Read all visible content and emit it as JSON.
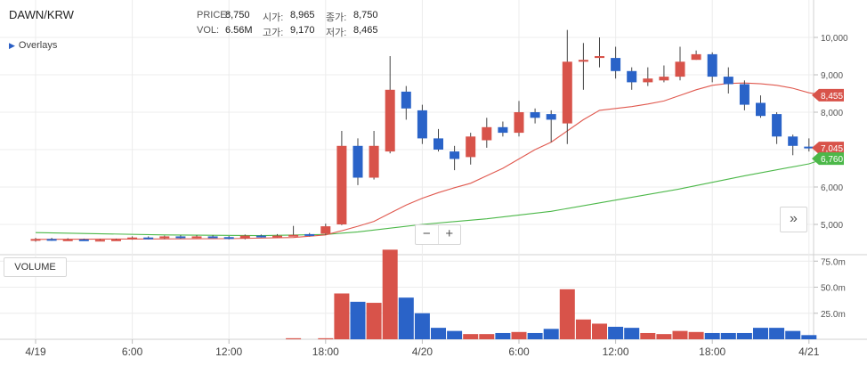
{
  "header": {
    "pair": "DAWN/KRW",
    "price_label": "PRICE:",
    "price": "8,750",
    "vol_label": "VOL:",
    "vol": "6.56M",
    "open_label": "시가:",
    "open": "8,965",
    "high_label": "고가:",
    "high": "9,170",
    "close_label": "종가:",
    "close": "8,750",
    "low_label": "저가:",
    "low": "8,465"
  },
  "overlays_label": "Overlays",
  "volume_label": "VOLUME",
  "zoom": {
    "minus": "−",
    "plus": "+"
  },
  "forward_label": "»",
  "colors": {
    "up": "#d8534a",
    "down": "#2a63c8",
    "ma_fast": "#e0594f",
    "ma_slow": "#4cb849"
  },
  "chart_data": {
    "type": "candlestick",
    "price_axis": {
      "ticks": [
        5000,
        6000,
        7000,
        8000,
        9000,
        10000
      ],
      "tick_labels": [
        "5,000",
        "6,000",
        "7,000",
        "8,000",
        "9,000",
        "10,000"
      ]
    },
    "volume_axis": {
      "ticks": [
        25,
        50,
        75
      ],
      "tick_labels": [
        "25.0m",
        "50.0m",
        "75.0m"
      ]
    },
    "x_ticks": [
      "4/19",
      "6:00",
      "12:00",
      "18:00",
      "4/20",
      "6:00",
      "12:00",
      "18:00",
      "4/21"
    ],
    "x_tick_hours": [
      0,
      6,
      12,
      18,
      24,
      30,
      36,
      42,
      48
    ],
    "candles": [
      {
        "h": 0.0,
        "o": 4570,
        "c": 4610,
        "hi": 4640,
        "lo": 4540,
        "v": 0
      },
      {
        "h": 1.0,
        "o": 4610,
        "c": 4580,
        "hi": 4640,
        "lo": 4560,
        "v": 0
      },
      {
        "h": 2.0,
        "o": 4590,
        "c": 4600,
        "hi": 4630,
        "lo": 4570,
        "v": 0
      },
      {
        "h": 3.0,
        "o": 4600,
        "c": 4580,
        "hi": 4620,
        "lo": 4560,
        "v": 0
      },
      {
        "h": 4.0,
        "o": 4580,
        "c": 4590,
        "hi": 4610,
        "lo": 4560,
        "v": 0
      },
      {
        "h": 5.0,
        "o": 4590,
        "c": 4600,
        "hi": 4620,
        "lo": 4570,
        "v": 0
      },
      {
        "h": 6.0,
        "o": 4600,
        "c": 4650,
        "hi": 4680,
        "lo": 4590,
        "v": 0
      },
      {
        "h": 7.0,
        "o": 4650,
        "c": 4620,
        "hi": 4680,
        "lo": 4600,
        "v": 0
      },
      {
        "h": 8.0,
        "o": 4630,
        "c": 4680,
        "hi": 4700,
        "lo": 4610,
        "v": 0
      },
      {
        "h": 9.0,
        "o": 4680,
        "c": 4640,
        "hi": 4710,
        "lo": 4620,
        "v": 0
      },
      {
        "h": 10.0,
        "o": 4650,
        "c": 4680,
        "hi": 4710,
        "lo": 4630,
        "v": 0
      },
      {
        "h": 11.0,
        "o": 4680,
        "c": 4660,
        "hi": 4710,
        "lo": 4640,
        "v": 0
      },
      {
        "h": 12.0,
        "o": 4660,
        "c": 4620,
        "hi": 4690,
        "lo": 4600,
        "v": 0
      },
      {
        "h": 13.0,
        "o": 4620,
        "c": 4700,
        "hi": 4730,
        "lo": 4600,
        "v": 0
      },
      {
        "h": 14.0,
        "o": 4700,
        "c": 4670,
        "hi": 4730,
        "lo": 4650,
        "v": 0
      },
      {
        "h": 15.0,
        "o": 4670,
        "c": 4700,
        "hi": 4740,
        "lo": 4650,
        "v": 0
      },
      {
        "h": 16.0,
        "o": 4700,
        "c": 4720,
        "hi": 4960,
        "lo": 4690,
        "v": 1
      },
      {
        "h": 17.0,
        "o": 4740,
        "c": 4700,
        "hi": 4770,
        "lo": 4680,
        "v": 0
      },
      {
        "h": 18.0,
        "o": 4750,
        "c": 4950,
        "hi": 5020,
        "lo": 4720,
        "v": 1
      },
      {
        "h": 19.0,
        "o": 5000,
        "c": 7100,
        "hi": 7500,
        "lo": 4980,
        "v": 44
      },
      {
        "h": 20.0,
        "o": 7100,
        "c": 6250,
        "hi": 7300,
        "lo": 6050,
        "v": 36
      },
      {
        "h": 21.0,
        "o": 6250,
        "c": 7100,
        "hi": 7500,
        "lo": 6200,
        "v": 35
      },
      {
        "h": 22.0,
        "o": 6950,
        "c": 8600,
        "hi": 9500,
        "lo": 6900,
        "v": 86
      },
      {
        "h": 23.0,
        "o": 8550,
        "c": 8100,
        "hi": 8700,
        "lo": 7800,
        "v": 40
      },
      {
        "h": 24.0,
        "o": 8050,
        "c": 7300,
        "hi": 8200,
        "lo": 7150,
        "v": 25
      },
      {
        "h": 25.0,
        "o": 7300,
        "c": 7000,
        "hi": 7550,
        "lo": 6950,
        "v": 11
      },
      {
        "h": 26.0,
        "o": 6950,
        "c": 6750,
        "hi": 7100,
        "lo": 6450,
        "v": 8
      },
      {
        "h": 27.0,
        "o": 6800,
        "c": 7350,
        "hi": 7450,
        "lo": 6600,
        "v": 5
      },
      {
        "h": 28.0,
        "o": 7250,
        "c": 7600,
        "hi": 7850,
        "lo": 7050,
        "v": 5
      },
      {
        "h": 29.0,
        "o": 7600,
        "c": 7450,
        "hi": 7750,
        "lo": 7350,
        "v": 6
      },
      {
        "h": 30.0,
        "o": 7450,
        "c": 8000,
        "hi": 8300,
        "lo": 7350,
        "v": 7
      },
      {
        "h": 31.0,
        "o": 8000,
        "c": 7850,
        "hi": 8100,
        "lo": 7700,
        "v": 6
      },
      {
        "h": 32.0,
        "o": 7950,
        "c": 7800,
        "hi": 8050,
        "lo": 7200,
        "v": 10
      },
      {
        "h": 33.0,
        "o": 7700,
        "c": 9350,
        "hi": 10200,
        "lo": 7150,
        "v": 48
      },
      {
        "h": 34.0,
        "o": 9350,
        "c": 9400,
        "hi": 9850,
        "lo": 8600,
        "v": 19
      },
      {
        "h": 35.0,
        "o": 9450,
        "c": 9500,
        "hi": 10000,
        "lo": 9200,
        "v": 15
      },
      {
        "h": 36.0,
        "o": 9450,
        "c": 9100,
        "hi": 9750,
        "lo": 8900,
        "v": 12
      },
      {
        "h": 37.0,
        "o": 9100,
        "c": 8800,
        "hi": 9200,
        "lo": 8600,
        "v": 11
      },
      {
        "h": 38.0,
        "o": 8800,
        "c": 8900,
        "hi": 9200,
        "lo": 8700,
        "v": 6
      },
      {
        "h": 39.0,
        "o": 8850,
        "c": 8950,
        "hi": 9250,
        "lo": 8800,
        "v": 5
      },
      {
        "h": 40.0,
        "o": 8950,
        "c": 9350,
        "hi": 9750,
        "lo": 8850,
        "v": 8
      },
      {
        "h": 41.0,
        "o": 9400,
        "c": 9550,
        "hi": 9650,
        "lo": 9400,
        "v": 7
      },
      {
        "h": 42.0,
        "o": 9550,
        "c": 8950,
        "hi": 9600,
        "lo": 8800,
        "v": 6
      },
      {
        "h": 43.0,
        "o": 8950,
        "c": 8750,
        "hi": 9200,
        "lo": 8500,
        "v": 6
      },
      {
        "h": 44.0,
        "o": 8750,
        "c": 8200,
        "hi": 8850,
        "lo": 8050,
        "v": 6
      },
      {
        "h": 45.0,
        "o": 8250,
        "c": 7900,
        "hi": 8450,
        "lo": 7850,
        "v": 11
      },
      {
        "h": 46.0,
        "o": 7950,
        "c": 7350,
        "hi": 8000,
        "lo": 7150,
        "v": 11
      },
      {
        "h": 47.0,
        "o": 7350,
        "c": 7100,
        "hi": 7400,
        "lo": 6850,
        "v": 8
      },
      {
        "h": 48.0,
        "o": 7080,
        "c": 7045,
        "hi": 7300,
        "lo": 6950,
        "v": 4
      }
    ],
    "ma_fast": {
      "hours": [
        0,
        6,
        12,
        16,
        18,
        19,
        20,
        21,
        22,
        23,
        24,
        25,
        26,
        27,
        28,
        29,
        30,
        31,
        32,
        33,
        34,
        35,
        36,
        37,
        38,
        39,
        40,
        41,
        42,
        43,
        44,
        45,
        46,
        47,
        48,
        49
      ],
      "values": [
        4600,
        4610,
        4620,
        4650,
        4720,
        4830,
        4950,
        5080,
        5300,
        5520,
        5700,
        5850,
        5980,
        6100,
        6300,
        6500,
        6750,
        7000,
        7200,
        7500,
        7800,
        8050,
        8100,
        8150,
        8220,
        8300,
        8450,
        8600,
        8720,
        8770,
        8780,
        8760,
        8720,
        8640,
        8520,
        8455
      ]
    },
    "ma_slow": {
      "hours": [
        0,
        8,
        14,
        18,
        20,
        24,
        28,
        32,
        36,
        40,
        44,
        48,
        49
      ],
      "values": [
        4780,
        4720,
        4700,
        4730,
        4800,
        5000,
        5150,
        5350,
        5650,
        5950,
        6300,
        6620,
        6760
      ]
    },
    "price_tags": [
      {
        "label": "8,455",
        "value": 8455,
        "color": "#d8534a"
      },
      {
        "label": "7,045",
        "value": 7045,
        "color": "#d8534a"
      },
      {
        "label": "6,760",
        "value": 6760,
        "color": "#4cb849"
      }
    ]
  }
}
